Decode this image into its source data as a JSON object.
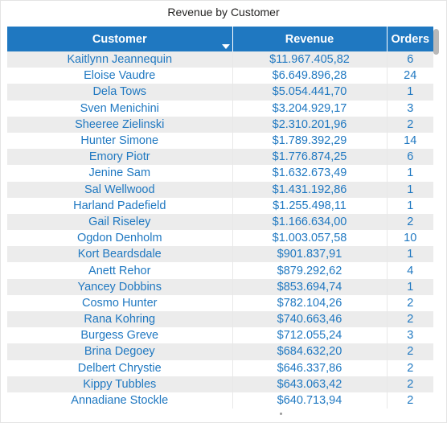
{
  "visual": {
    "title": "Revenue by Customer"
  },
  "table": {
    "columns": [
      "Customer",
      "Revenue",
      "Orders"
    ],
    "sort": {
      "column": "Revenue",
      "direction": "descending"
    },
    "rows": [
      {
        "customer": "Kaitlynn Jeannequin",
        "revenue": "$11.967.405,82",
        "orders": "6"
      },
      {
        "customer": "Eloise Vaudre",
        "revenue": "$6.649.896,28",
        "orders": "24"
      },
      {
        "customer": "Dela Tows",
        "revenue": "$5.054.441,70",
        "orders": "1"
      },
      {
        "customer": "Sven Menichini",
        "revenue": "$3.204.929,17",
        "orders": "3"
      },
      {
        "customer": "Sheeree Zielinski",
        "revenue": "$2.310.201,96",
        "orders": "2"
      },
      {
        "customer": "Hunter Simone",
        "revenue": "$1.789.392,29",
        "orders": "14"
      },
      {
        "customer": "Emory Piotr",
        "revenue": "$1.776.874,25",
        "orders": "6"
      },
      {
        "customer": "Jenine Sam",
        "revenue": "$1.632.673,49",
        "orders": "1"
      },
      {
        "customer": "Sal Wellwood",
        "revenue": "$1.431.192,86",
        "orders": "1"
      },
      {
        "customer": "Harland Padefield",
        "revenue": "$1.255.498,11",
        "orders": "1"
      },
      {
        "customer": "Gail Riseley",
        "revenue": "$1.166.634,00",
        "orders": "2"
      },
      {
        "customer": "Ogdon Denholm",
        "revenue": "$1.003.057,58",
        "orders": "10"
      },
      {
        "customer": "Kort Beardsdale",
        "revenue": "$901.837,91",
        "orders": "1"
      },
      {
        "customer": "Anett Rehor",
        "revenue": "$879.292,62",
        "orders": "4"
      },
      {
        "customer": "Yancey Dobbins",
        "revenue": "$853.694,74",
        "orders": "1"
      },
      {
        "customer": "Cosmo Hunter",
        "revenue": "$782.104,26",
        "orders": "2"
      },
      {
        "customer": "Rana Kohring",
        "revenue": "$740.663,46",
        "orders": "2"
      },
      {
        "customer": "Burgess Greve",
        "revenue": "$712.055,24",
        "orders": "3"
      },
      {
        "customer": "Brina Degoey",
        "revenue": "$684.632,20",
        "orders": "2"
      },
      {
        "customer": "Delbert Chrystie",
        "revenue": "$646.337,86",
        "orders": "2"
      },
      {
        "customer": "Kippy Tubbles",
        "revenue": "$643.063,42",
        "orders": "2"
      },
      {
        "customer": "Annadiane Stockle",
        "revenue": "$640.713,94",
        "orders": "2"
      }
    ]
  },
  "colors": {
    "header_background": "#1f78c1",
    "header_text": "#ffffff",
    "cell_text": "#1f78c1",
    "band_row": "#ececec"
  },
  "icons": {
    "sort": "sort-descending-icon",
    "scrollbar": "vertical-scrollbar"
  }
}
